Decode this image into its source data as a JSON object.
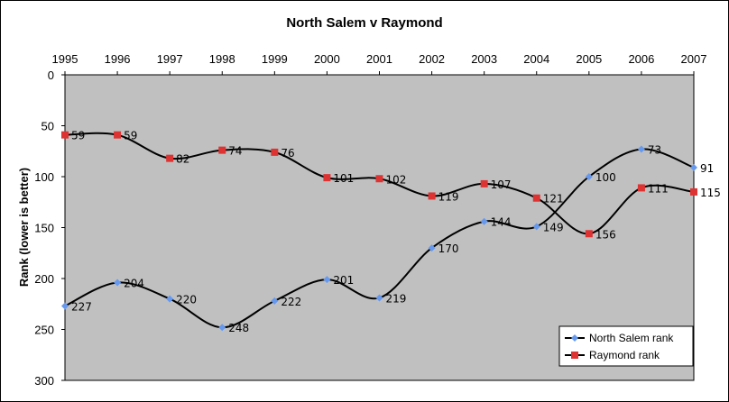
{
  "chart_data": {
    "type": "line",
    "title": "North Salem v Raymond",
    "xlabel": "",
    "ylabel": "Rank (lower is better)",
    "y_axis_inverted": true,
    "x_axis_position": "top",
    "ylim": [
      0,
      300
    ],
    "y_ticks": [
      0,
      50,
      100,
      150,
      200,
      250,
      300
    ],
    "categories": [
      "1995",
      "1996",
      "1997",
      "1998",
      "1999",
      "2000",
      "2001",
      "2002",
      "2003",
      "2004",
      "2005",
      "2006",
      "2007"
    ],
    "series": [
      {
        "name": "North Salem rank",
        "color": "#6699ee",
        "marker": "diamond",
        "values": [
          227,
          204,
          220,
          248,
          222,
          201,
          219,
          170,
          144,
          149,
          100,
          73,
          91
        ]
      },
      {
        "name": "Raymond rank",
        "color": "#dd3333",
        "marker": "square",
        "values": [
          59,
          59,
          82,
          74,
          76,
          101,
          102,
          119,
          107,
          121,
          156,
          111,
          115
        ]
      }
    ],
    "plot_background": "#c0c0c0",
    "line_color": "#000000",
    "smoothed": true,
    "legend_position": "bottom-right",
    "grid": false
  }
}
